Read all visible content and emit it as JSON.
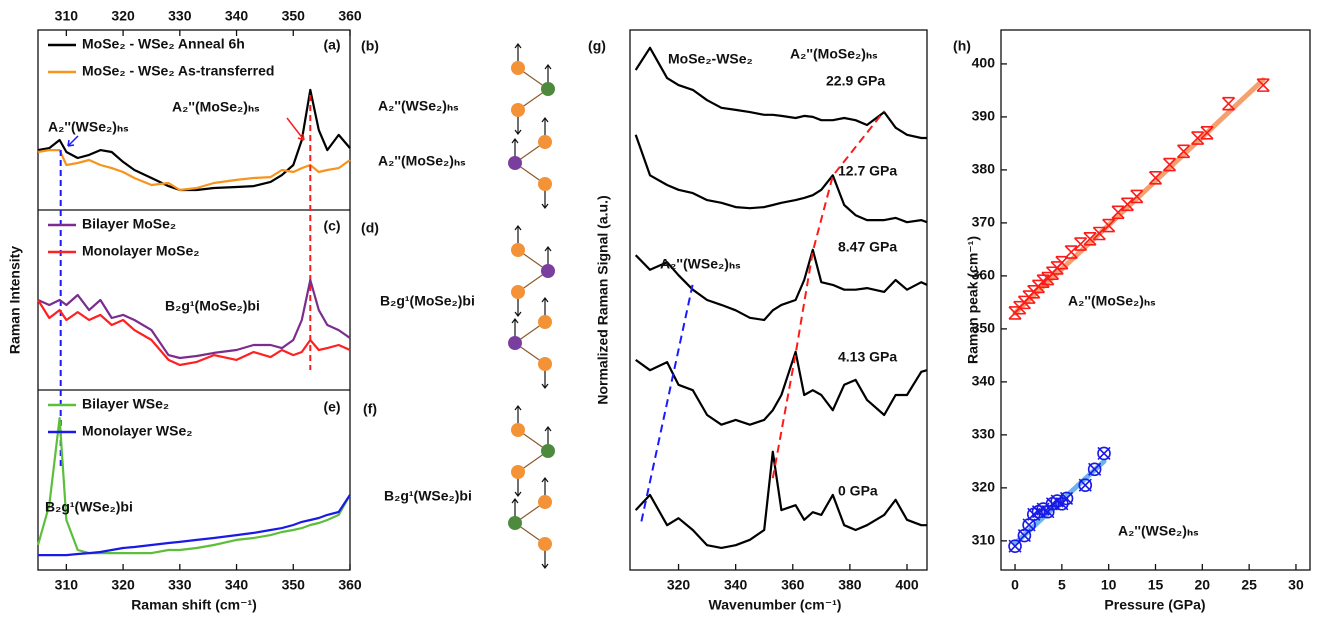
{
  "chart_data": [
    {
      "type": "line",
      "label": "(a)",
      "xlim": [
        305,
        360
      ],
      "xticks": [
        310,
        320,
        330,
        340,
        350,
        360
      ],
      "ylim": [
        0,
        1
      ],
      "x": [
        305,
        307,
        308.8,
        310,
        312,
        314,
        316,
        318,
        320,
        322,
        325,
        328,
        330,
        333,
        336,
        340,
        343,
        346,
        348,
        350,
        351.5,
        353,
        354.5,
        356,
        358,
        360
      ],
      "series": [
        {
          "name": "MoSe₂ - WSe₂ Anneal 6h",
          "color": "#000000",
          "values": [
            0.333,
            0.344,
            0.389,
            0.322,
            0.289,
            0.306,
            0.333,
            0.322,
            0.267,
            0.222,
            0.178,
            0.133,
            0.111,
            0.111,
            0.122,
            0.128,
            0.133,
            0.156,
            0.194,
            0.25,
            0.389,
            0.667,
            0.444,
            0.333,
            0.417,
            0.344
          ]
        },
        {
          "name": "MoSe₂ - WSe₂ As-transferred",
          "color": "#f7941d",
          "values": [
            0.322,
            0.333,
            0.333,
            0.25,
            0.261,
            0.278,
            0.25,
            0.233,
            0.211,
            0.178,
            0.139,
            0.15,
            0.111,
            0.122,
            0.15,
            0.167,
            0.178,
            0.183,
            0.222,
            0.211,
            0.233,
            0.25,
            0.211,
            0.222,
            0.233,
            0.278
          ]
        }
      ],
      "annotations": [
        {
          "text": "A₂''(WSe₂)ₕₛ",
          "color": "#1a1aff"
        },
        {
          "text": "A₂''(MoSe₂)ₕₛ",
          "color": "#ff1a1a"
        }
      ],
      "reference_lines": [
        {
          "x": 309,
          "color": "#1a1aff"
        },
        {
          "x": 353,
          "color": "#ff1a1a"
        }
      ]
    },
    {
      "type": "line",
      "label": "(c)",
      "y_label": "Raman Intensity",
      "xlim": [
        305,
        360
      ],
      "ylim": [
        0,
        1
      ],
      "x": [
        305,
        307,
        308.8,
        310,
        312,
        314,
        316,
        318,
        320,
        322,
        325,
        328,
        330,
        333,
        336,
        340,
        343,
        346,
        348,
        350,
        351.5,
        353,
        354.5,
        356,
        358,
        360
      ],
      "series": [
        {
          "name": "Bilayer MoSe₂",
          "color": "#7b2d8e",
          "values": [
            0.5,
            0.472,
            0.5,
            0.472,
            0.528,
            0.444,
            0.5,
            0.4,
            0.417,
            0.389,
            0.333,
            0.194,
            0.178,
            0.189,
            0.206,
            0.222,
            0.25,
            0.25,
            0.233,
            0.278,
            0.389,
            0.611,
            0.444,
            0.361,
            0.333,
            0.289
          ]
        },
        {
          "name": "Monolayer MoSe₂",
          "color": "#ff2020",
          "values": [
            0.5,
            0.4,
            0.444,
            0.389,
            0.433,
            0.389,
            0.417,
            0.361,
            0.389,
            0.333,
            0.278,
            0.167,
            0.139,
            0.156,
            0.194,
            0.167,
            0.211,
            0.183,
            0.222,
            0.194,
            0.211,
            0.278,
            0.222,
            0.233,
            0.25,
            0.222
          ]
        }
      ],
      "annotations": [
        {
          "text": "B₂g¹(MoSe₂)bi",
          "color": "#7b2d8e"
        }
      ]
    },
    {
      "type": "line",
      "label": "(e)",
      "x_label": "Raman shift (cm⁻¹)",
      "xlim": [
        305,
        360
      ],
      "xticks": [
        310,
        320,
        330,
        340,
        350,
        360
      ],
      "ylim": [
        0,
        1
      ],
      "x": [
        305,
        307,
        308.8,
        310,
        312,
        314,
        316,
        318,
        320,
        322,
        325,
        328,
        330,
        333,
        336,
        340,
        343,
        346,
        348,
        350,
        351.5,
        353,
        354.5,
        356,
        358,
        360
      ],
      "series": [
        {
          "name": "Bilayer WSe₂",
          "color": "#5cbf3c",
          "values": [
            0.139,
            0.361,
            0.844,
            0.278,
            0.111,
            0.094,
            0.094,
            0.094,
            0.094,
            0.094,
            0.094,
            0.111,
            0.111,
            0.122,
            0.139,
            0.167,
            0.178,
            0.194,
            0.211,
            0.222,
            0.233,
            0.25,
            0.261,
            0.278,
            0.306,
            0.417
          ]
        },
        {
          "name": "Monolayer WSe₂",
          "color": "#1a1ae6",
          "values": [
            0.083,
            0.083,
            0.083,
            0.083,
            0.089,
            0.094,
            0.1,
            0.111,
            0.122,
            0.128,
            0.139,
            0.15,
            0.156,
            0.167,
            0.178,
            0.194,
            0.206,
            0.222,
            0.233,
            0.25,
            0.267,
            0.278,
            0.289,
            0.306,
            0.322,
            0.417
          ]
        }
      ],
      "annotations": [
        {
          "text": "B₂g¹(WSe₂)bi",
          "color": "#5cbf3c"
        }
      ]
    },
    {
      "type": "line",
      "label": "(g)",
      "title": "MoSe₂-WSe₂",
      "x_label": "Wavenumber (cm⁻¹)",
      "y_label": "Normalized Raman Signal (a.u.)",
      "xlim": [
        303,
        407
      ],
      "xticks": [
        320,
        340,
        360,
        380,
        400
      ],
      "ylim": [
        0,
        1
      ],
      "x": [
        305,
        310,
        316,
        320,
        325,
        330,
        335,
        340,
        345,
        350,
        353,
        356,
        361,
        364,
        367,
        370,
        374,
        378,
        382,
        386,
        392,
        396,
        400,
        405,
        407
      ],
      "series": [
        {
          "name": "22.9 GPa",
          "color": "#000000",
          "values": [
            0.926,
            0.967,
            0.911,
            0.898,
            0.889,
            0.87,
            0.856,
            0.852,
            0.848,
            0.843,
            0.843,
            0.841,
            0.837,
            0.841,
            0.839,
            0.833,
            0.833,
            0.837,
            0.833,
            0.824,
            0.848,
            0.819,
            0.806,
            0.8,
            0.8
          ]
        },
        {
          "name": "12.7 GPa",
          "color": "#000000",
          "values": [
            0.806,
            0.731,
            0.713,
            0.704,
            0.698,
            0.685,
            0.68,
            0.672,
            0.67,
            0.672,
            0.676,
            0.68,
            0.685,
            0.689,
            0.694,
            0.704,
            0.731,
            0.676,
            0.657,
            0.648,
            0.648,
            0.652,
            0.644,
            0.648,
            0.644
          ]
        },
        {
          "name": "8.47 GPa",
          "color": "#000000",
          "values": [
            0.583,
            0.556,
            0.57,
            0.546,
            0.519,
            0.5,
            0.491,
            0.481,
            0.467,
            0.463,
            0.481,
            0.491,
            0.5,
            0.537,
            0.593,
            0.533,
            0.528,
            0.519,
            0.519,
            0.522,
            0.515,
            0.537,
            0.519,
            0.533,
            0.528
          ]
        },
        {
          "name": "4.13 GPa",
          "color": "#000000",
          "values": [
            0.389,
            0.37,
            0.385,
            0.343,
            0.333,
            0.287,
            0.269,
            0.278,
            0.269,
            0.278,
            0.296,
            0.324,
            0.404,
            0.324,
            0.333,
            0.324,
            0.296,
            0.343,
            0.352,
            0.315,
            0.287,
            0.324,
            0.324,
            0.367,
            0.37
          ]
        },
        {
          "name": "0 GPa",
          "color": "#000000",
          "values": [
            0.111,
            0.139,
            0.083,
            0.096,
            0.074,
            0.046,
            0.041,
            0.046,
            0.056,
            0.074,
            0.219,
            0.111,
            0.12,
            0.093,
            0.107,
            0.102,
            0.139,
            0.083,
            0.074,
            0.083,
            0.102,
            0.13,
            0.093,
            0.083,
            0.083
          ]
        }
      ],
      "annotations": [
        {
          "text": "A₂''(MoSe₂)ₕₛ",
          "color": "#ff1a1a"
        },
        {
          "text": "A₂''(WSe₂)ₕₛ",
          "color": "#1a1aff"
        }
      ],
      "guides": [
        {
          "color": "#ff1a1a",
          "x": [
            353,
            361,
            367,
            374,
            392
          ],
          "values": [
            0.17,
            0.4,
            0.59,
            0.73,
            0.85
          ]
        },
        {
          "color": "#1a1aff",
          "x": [
            307,
            325
          ],
          "values": [
            0.09,
            0.53
          ]
        }
      ]
    },
    {
      "type": "scatter",
      "label": "(h)",
      "x_label": "Pressure (GPa)",
      "y_label": "Raman peak (cm⁻¹)",
      "xlim": [
        -1.5,
        31.5
      ],
      "xticks": [
        0,
        5,
        10,
        15,
        20,
        25,
        30
      ],
      "ylim": [
        304.5,
        406.4
      ],
      "yticks": [
        310,
        320,
        330,
        340,
        350,
        360,
        370,
        380,
        390,
        400
      ],
      "series": [
        {
          "name": "A₂''(MoSe₂)ₕₛ",
          "color": "#ff1a1a",
          "marker": "hourglass",
          "x": [
            0,
            0.5,
            1,
            1.5,
            2,
            2.5,
            3,
            3.5,
            4,
            4.5,
            5,
            6,
            7,
            8,
            9,
            10,
            11,
            12,
            13,
            15,
            16.5,
            18,
            19.5,
            20.5,
            22.8,
            26.5
          ],
          "values": [
            353,
            354,
            355,
            356,
            357,
            358,
            359,
            359.5,
            360.5,
            361.5,
            362.5,
            364.5,
            366,
            367,
            368,
            369.5,
            372,
            373.5,
            375,
            378.5,
            381,
            383.5,
            386,
            387,
            392.5,
            396
          ],
          "fit": {
            "color": "#f4a070",
            "x": [
              0,
              26.5
            ],
            "values": [
              353,
              397
            ]
          }
        },
        {
          "name": "A₂''(WSe₂)ₕₛ",
          "color": "#1a1ae6",
          "marker": "circle-x",
          "x": [
            0,
            1,
            1.5,
            2,
            2.5,
            3,
            3.5,
            4,
            4.5,
            5,
            5.5,
            7.5,
            8.5,
            9.5
          ],
          "values": [
            309,
            311,
            313,
            315,
            315.5,
            316,
            315.5,
            317,
            317.5,
            317,
            318,
            320.5,
            323.5,
            326.5
          ],
          "fit": {
            "color": "#6cb4f0",
            "x": [
              0,
              9.5
            ],
            "values": [
              309.5,
              325
            ]
          }
        }
      ]
    }
  ],
  "diagrams": [
    {
      "label": "(b)",
      "texts": [
        {
          "text": "A₂''(WSe₂)ₕₛ",
          "color": "#1a1aff"
        },
        {
          "text": "A₂''(MoSe₂)ₕₛ",
          "color": "#ff1a1a"
        }
      ]
    },
    {
      "label": "(d)",
      "texts": [
        {
          "text": "B₂g¹(MoSe₂)bi",
          "color": "#7b2d8e"
        }
      ]
    },
    {
      "label": "(f)",
      "texts": [
        {
          "text": "B₂g¹(WSe₂)bi",
          "color": "#4e8a3e"
        }
      ]
    }
  ]
}
